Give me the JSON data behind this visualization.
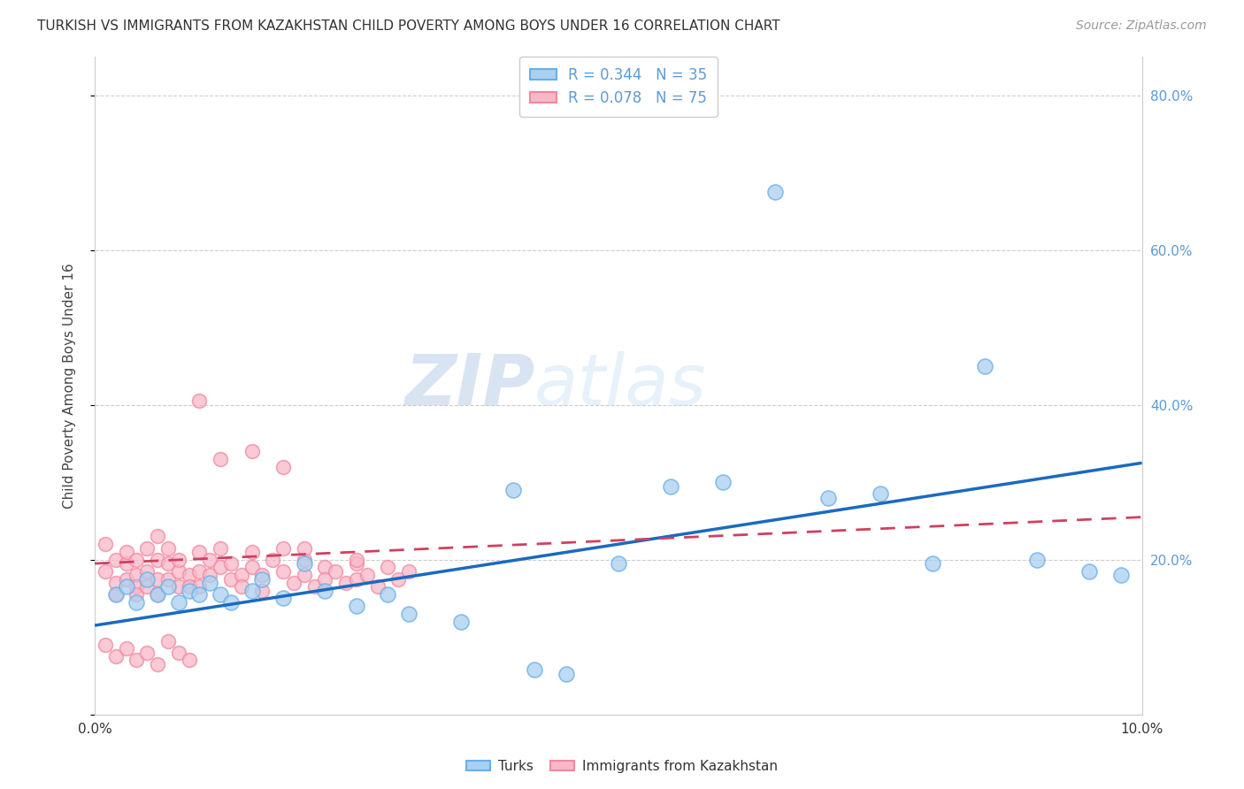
{
  "title": "TURKISH VS IMMIGRANTS FROM KAZAKHSTAN CHILD POVERTY AMONG BOYS UNDER 16 CORRELATION CHART",
  "source": "Source: ZipAtlas.com",
  "ylabel": "Child Poverty Among Boys Under 16",
  "xlim": [
    0.0,
    0.1
  ],
  "ylim": [
    0.0,
    0.85
  ],
  "color_turks_face": "#a8d0f0",
  "color_turks_edge": "#6aaee8",
  "color_kaz_face": "#f8b8c8",
  "color_kaz_edge": "#f088a0",
  "color_line_turks": "#1a6abf",
  "color_line_kaz": "#d04060",
  "watermark_zip_color": "#c8ddf0",
  "watermark_atlas_color": "#d8eaf8",
  "turks_x": [
    0.002,
    0.003,
    0.004,
    0.005,
    0.006,
    0.007,
    0.008,
    0.009,
    0.01,
    0.011,
    0.012,
    0.013,
    0.015,
    0.016,
    0.018,
    0.02,
    0.022,
    0.025,
    0.028,
    0.03,
    0.035,
    0.04,
    0.042,
    0.045,
    0.05,
    0.055,
    0.06,
    0.065,
    0.07,
    0.075,
    0.08,
    0.085,
    0.09,
    0.095,
    0.098
  ],
  "turks_y": [
    0.155,
    0.165,
    0.145,
    0.175,
    0.155,
    0.165,
    0.145,
    0.16,
    0.155,
    0.17,
    0.155,
    0.145,
    0.16,
    0.175,
    0.15,
    0.195,
    0.16,
    0.14,
    0.155,
    0.13,
    0.12,
    0.29,
    0.058,
    0.052,
    0.195,
    0.295,
    0.3,
    0.675,
    0.28,
    0.285,
    0.195,
    0.45,
    0.2,
    0.185,
    0.18
  ],
  "kaz_x": [
    0.001,
    0.001,
    0.002,
    0.002,
    0.002,
    0.003,
    0.003,
    0.003,
    0.004,
    0.004,
    0.004,
    0.004,
    0.005,
    0.005,
    0.005,
    0.006,
    0.006,
    0.006,
    0.006,
    0.007,
    0.007,
    0.007,
    0.008,
    0.008,
    0.008,
    0.009,
    0.009,
    0.01,
    0.01,
    0.01,
    0.011,
    0.011,
    0.012,
    0.012,
    0.013,
    0.013,
    0.014,
    0.014,
    0.015,
    0.015,
    0.016,
    0.016,
    0.017,
    0.018,
    0.018,
    0.019,
    0.02,
    0.02,
    0.021,
    0.022,
    0.022,
    0.023,
    0.024,
    0.025,
    0.025,
    0.026,
    0.027,
    0.028,
    0.029,
    0.03,
    0.001,
    0.002,
    0.003,
    0.004,
    0.005,
    0.006,
    0.007,
    0.008,
    0.009,
    0.01,
    0.012,
    0.015,
    0.018,
    0.02,
    0.025
  ],
  "kaz_y": [
    0.22,
    0.185,
    0.2,
    0.17,
    0.155,
    0.195,
    0.175,
    0.21,
    0.18,
    0.165,
    0.2,
    0.155,
    0.215,
    0.185,
    0.165,
    0.2,
    0.175,
    0.155,
    0.23,
    0.195,
    0.175,
    0.215,
    0.185,
    0.165,
    0.2,
    0.18,
    0.165,
    0.21,
    0.185,
    0.165,
    0.2,
    0.18,
    0.215,
    0.19,
    0.175,
    0.195,
    0.18,
    0.165,
    0.21,
    0.19,
    0.18,
    0.16,
    0.2,
    0.215,
    0.185,
    0.17,
    0.2,
    0.18,
    0.165,
    0.19,
    0.175,
    0.185,
    0.17,
    0.195,
    0.175,
    0.18,
    0.165,
    0.19,
    0.175,
    0.185,
    0.09,
    0.075,
    0.085,
    0.07,
    0.08,
    0.065,
    0.095,
    0.08,
    0.07,
    0.405,
    0.33,
    0.34,
    0.32,
    0.215,
    0.2
  ],
  "line_turks_x0": 0.0,
  "line_turks_y0": 0.115,
  "line_turks_x1": 0.1,
  "line_turks_y1": 0.325,
  "line_kaz_x0": 0.0,
  "line_kaz_y0": 0.195,
  "line_kaz_x1": 0.1,
  "line_kaz_y1": 0.255
}
